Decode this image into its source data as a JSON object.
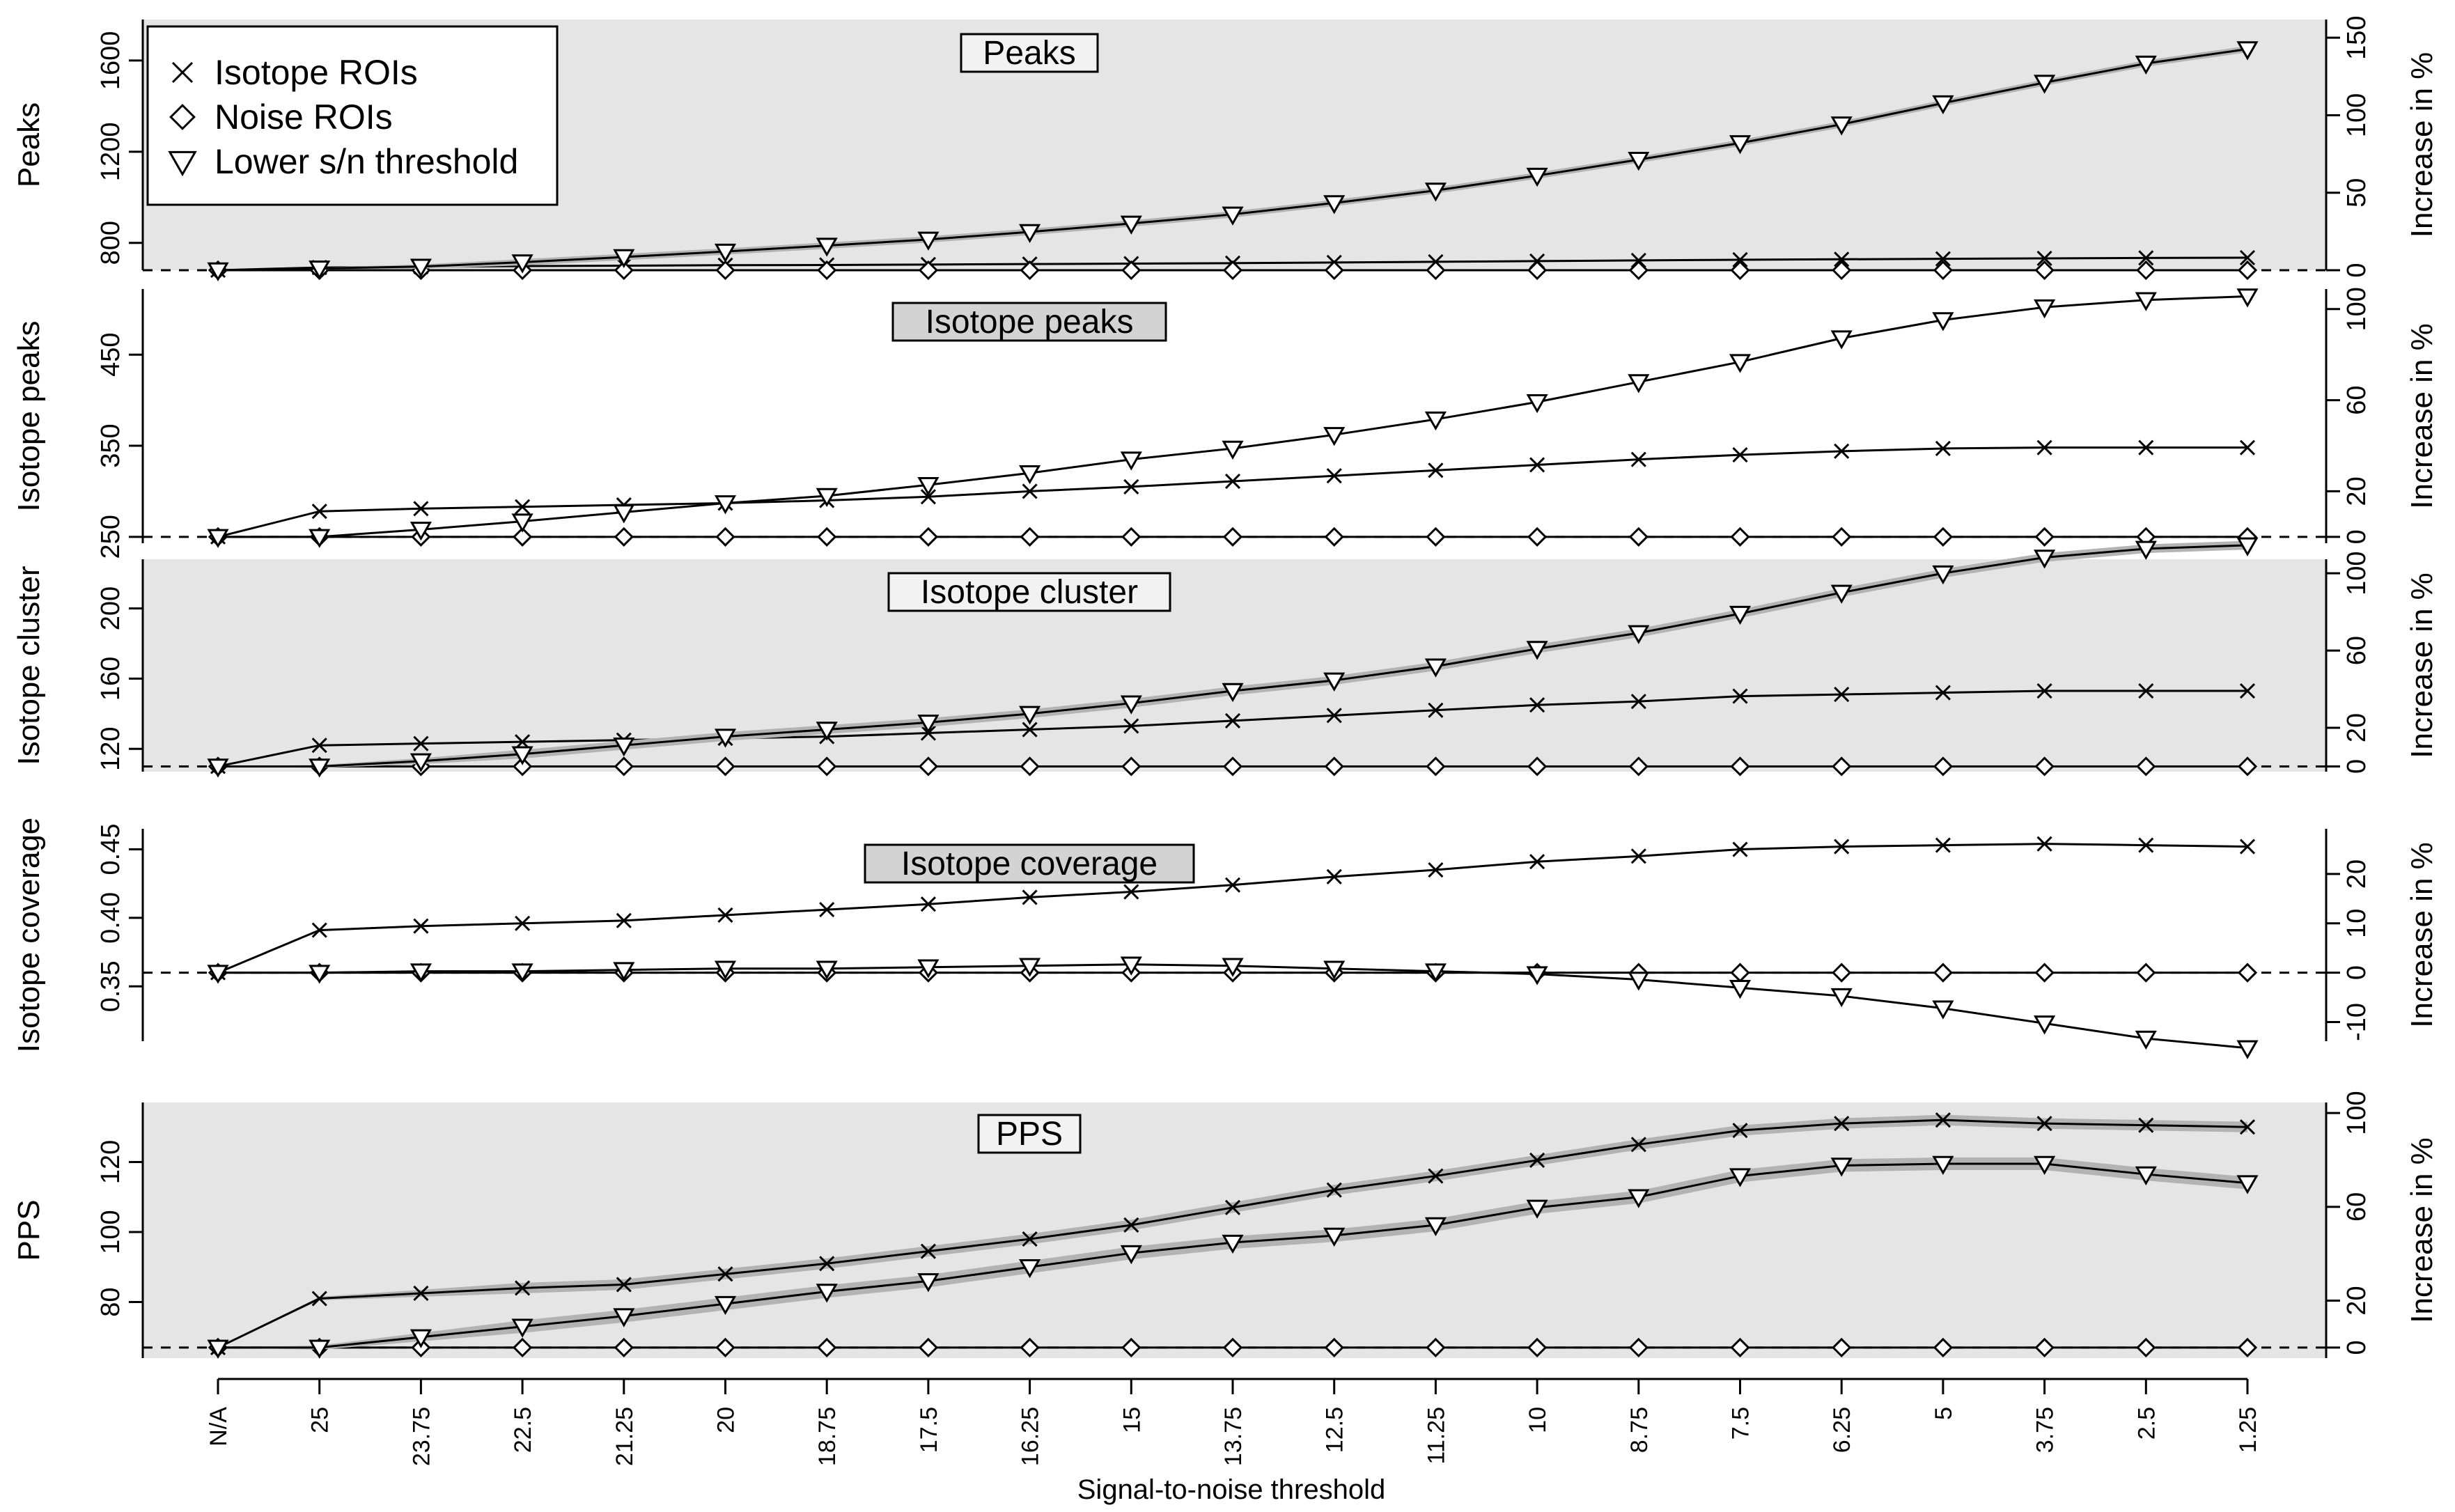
{
  "x_axis": {
    "label": "Signal-to-noise threshold",
    "ticks": [
      "N/A",
      "25",
      "23.75",
      "22.5",
      "21.25",
      "20",
      "18.75",
      "17.5",
      "16.25",
      "15",
      "13.75",
      "12.5",
      "11.25",
      "10",
      "8.75",
      "7.5",
      "6.25",
      "5",
      "3.75",
      "2.5",
      "1.25"
    ]
  },
  "legend": {
    "placement": "top-left",
    "items": [
      {
        "label": "Isotope ROIs",
        "marker": "cross"
      },
      {
        "label": "Noise ROIs",
        "marker": "diamond"
      },
      {
        "label": "Lower s/n threshold",
        "marker": "triangle-down"
      }
    ]
  },
  "right_axis_label": "Increase in %",
  "colors": {
    "panel_bg": "#e5e5e5",
    "band": "#b3b3b3",
    "line": "#000000",
    "title_box_light": "#f2f2f2",
    "title_box_dark": "#d3d3d3"
  },
  "chart_data": [
    {
      "type": "line",
      "title": "Peaks",
      "ylabel": "Peaks",
      "shaded_background": true,
      "title_box": "light",
      "ylim": [
        680,
        1780
      ],
      "yticks": [
        800,
        1200,
        1600
      ],
      "right_ticks": [
        0,
        50,
        100,
        150
      ],
      "baseline": 680,
      "series": [
        {
          "name": "Isotope ROIs",
          "marker": "cross",
          "band": 0,
          "values": [
            680,
            692,
            695,
            698,
            700,
            702,
            703,
            705,
            707,
            709,
            711,
            714,
            717,
            720,
            723,
            726,
            728,
            730,
            732,
            734,
            735
          ]
        },
        {
          "name": "Noise ROIs",
          "marker": "diamond",
          "band": 0,
          "values": [
            680,
            680,
            680,
            680,
            680,
            680,
            680,
            680,
            680,
            680,
            680,
            680,
            680,
            680,
            680,
            680,
            680,
            680,
            680,
            680,
            680
          ]
        },
        {
          "name": "Lower s/n threshold",
          "marker": "triangle-down",
          "band": 14,
          "values": [
            680,
            688,
            696,
            715,
            738,
            762,
            788,
            815,
            848,
            885,
            925,
            975,
            1030,
            1095,
            1165,
            1238,
            1320,
            1413,
            1503,
            1587,
            1650
          ]
        }
      ]
    },
    {
      "type": "line",
      "title": "Isotope peaks",
      "ylabel": "Isotope peaks",
      "shaded_background": false,
      "title_box": "dark",
      "ylim": [
        243,
        522
      ],
      "yticks": [
        250,
        350,
        450
      ],
      "right_ticks": [
        0,
        20,
        60,
        100
      ],
      "baseline": 250,
      "series": [
        {
          "name": "Isotope ROIs",
          "marker": "cross",
          "band": 0,
          "values": [
            250,
            278,
            281,
            283,
            285,
            287,
            290,
            294,
            300,
            305,
            311,
            317,
            323,
            329,
            335,
            340,
            344,
            347,
            348,
            348,
            348
          ]
        },
        {
          "name": "Noise ROIs",
          "marker": "diamond",
          "band": 0,
          "values": [
            250,
            250,
            250,
            250,
            250,
            250,
            250,
            250,
            250,
            250,
            250,
            250,
            250,
            250,
            250,
            250,
            250,
            250,
            250,
            250,
            250
          ]
        },
        {
          "name": "Lower s/n threshold",
          "marker": "triangle-down",
          "band": 0,
          "values": [
            250,
            250,
            258,
            267,
            277,
            287,
            295,
            307,
            320,
            335,
            347,
            362,
            379,
            398,
            420,
            442,
            468,
            488,
            502,
            510,
            514
          ]
        }
      ]
    },
    {
      "type": "line",
      "title": "Isotope cluster",
      "ylabel": "Isotope cluster",
      "shaded_background": true,
      "title_box": "light",
      "ylim": [
        107,
        228
      ],
      "yticks": [
        120,
        160,
        200
      ],
      "right_ticks": [
        0,
        20,
        60,
        100
      ],
      "baseline": 110,
      "series": [
        {
          "name": "Isotope ROIs",
          "marker": "cross",
          "band": 0,
          "values": [
            110,
            122,
            123,
            124,
            125,
            126,
            127,
            129,
            131,
            133,
            136,
            139,
            142,
            145,
            147,
            150,
            151,
            152,
            153,
            153,
            153
          ]
        },
        {
          "name": "Noise ROIs",
          "marker": "diamond",
          "band": 0,
          "values": [
            110,
            110,
            110,
            110,
            110,
            110,
            110,
            110,
            110,
            110,
            110,
            110,
            110,
            110,
            110,
            110,
            110,
            110,
            110,
            110,
            110
          ]
        },
        {
          "name": "Lower s/n threshold",
          "marker": "triangle-down",
          "band": 2.5,
          "values": [
            110,
            110,
            113,
            117,
            122,
            127,
            131,
            135,
            140,
            146,
            153,
            159,
            167,
            177,
            186,
            197,
            209,
            220,
            229,
            234,
            236
          ]
        }
      ]
    },
    {
      "type": "line",
      "title": "Isotope coverage",
      "ylabel": "Isotope coverage",
      "shaded_background": false,
      "title_box": "dark",
      "ylim": [
        0.31,
        0.465
      ],
      "yticks": [
        0.35,
        0.4,
        0.45
      ],
      "ytick_labels": [
        "0.35",
        "0.40",
        "0.45"
      ],
      "right_ticks": [
        -10,
        0,
        10,
        20
      ],
      "baseline": 0.36,
      "series": [
        {
          "name": "Isotope ROIs",
          "marker": "cross",
          "band": 0,
          "values": [
            0.36,
            0.391,
            0.394,
            0.396,
            0.398,
            0.402,
            0.406,
            0.41,
            0.415,
            0.419,
            0.424,
            0.43,
            0.435,
            0.441,
            0.445,
            0.45,
            0.452,
            0.453,
            0.454,
            0.453,
            0.452
          ]
        },
        {
          "name": "Noise ROIs",
          "marker": "diamond",
          "band": 0,
          "values": [
            0.36,
            0.36,
            0.36,
            0.36,
            0.36,
            0.36,
            0.36,
            0.36,
            0.36,
            0.36,
            0.36,
            0.36,
            0.36,
            0.36,
            0.36,
            0.36,
            0.36,
            0.36,
            0.36,
            0.36,
            0.36
          ]
        },
        {
          "name": "Lower s/n threshold",
          "marker": "triangle-down",
          "band": 0,
          "values": [
            0.36,
            0.36,
            0.361,
            0.361,
            0.362,
            0.363,
            0.363,
            0.364,
            0.365,
            0.366,
            0.365,
            0.363,
            0.361,
            0.359,
            0.355,
            0.349,
            0.343,
            0.334,
            0.323,
            0.312,
            0.305
          ]
        }
      ]
    },
    {
      "type": "line",
      "title": "PPS",
      "ylabel": "PPS",
      "shaded_background": true,
      "title_box": "light",
      "ylim": [
        64,
        137
      ],
      "yticks": [
        80,
        100,
        120
      ],
      "right_ticks": [
        0,
        20,
        60,
        100
      ],
      "baseline": 67,
      "series": [
        {
          "name": "Isotope ROIs",
          "marker": "cross",
          "band": 1.5,
          "values": [
            67,
            81,
            82.5,
            84,
            85,
            88,
            91,
            94.5,
            98,
            102,
            107,
            112,
            116,
            120.5,
            125,
            129,
            131,
            132,
            131,
            130.5,
            130
          ]
        },
        {
          "name": "Noise ROIs",
          "marker": "diamond",
          "band": 0,
          "values": [
            67,
            67,
            67,
            67,
            67,
            67,
            67,
            67,
            67,
            67,
            67,
            67,
            67,
            67,
            67,
            67,
            67,
            67,
            67,
            67,
            67
          ]
        },
        {
          "name": "Lower s/n threshold",
          "marker": "triangle-down",
          "band": 1.8,
          "values": [
            67,
            67,
            70,
            73,
            76,
            79.5,
            83,
            86,
            90,
            94,
            97,
            99,
            102,
            107,
            110,
            116,
            119,
            119.5,
            119.5,
            116.5,
            114
          ]
        }
      ]
    }
  ]
}
